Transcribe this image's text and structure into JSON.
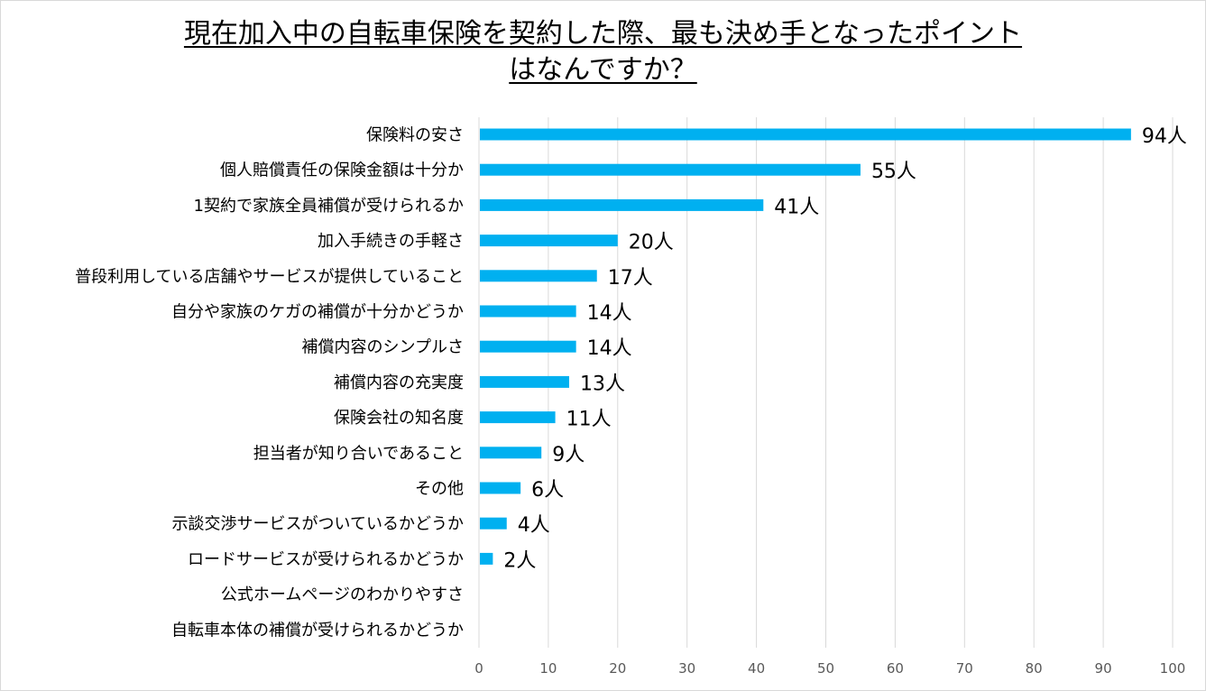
{
  "chart_data": {
    "type": "bar",
    "orientation": "horizontal",
    "title_line1": "現在加入中の自転車保険を契約した際、最も決め手となったポイント",
    "title_line2": "はなんですか？",
    "categories": [
      "保険料の安さ",
      "個人賠償責任の保険金額は十分か",
      "1契約で家族全員補償が受けられるか",
      "加入手続きの手軽さ",
      "普段利用している店舗やサービスが提供していること",
      "自分や家族のケガの補償が十分かどうか",
      "補償内容のシンプルさ",
      "補償内容の充実度",
      "保険会社の知名度",
      "担当者が知り合いであること",
      "その他",
      "示談交渉サービスがついているかどうか",
      "ロードサービスが受けられるかどうか",
      "公式ホームページのわかりやすさ",
      "自転車本体の補償が受けられるかどうか"
    ],
    "values": [
      94,
      55,
      41,
      20,
      17,
      14,
      14,
      13,
      11,
      9,
      6,
      4,
      2,
      0,
      0
    ],
    "value_labels": [
      "94人",
      "55人",
      "41人",
      "20人",
      "17人",
      "14人",
      "14人",
      "13人",
      "11人",
      "9人",
      "6人",
      "4人",
      "2人",
      "",
      ""
    ],
    "xlim": [
      0,
      100
    ],
    "xticks": [
      "0",
      "10",
      "20",
      "30",
      "40",
      "50",
      "60",
      "70",
      "80",
      "90",
      "100"
    ],
    "grid": true,
    "bar_color": "#00b0f0",
    "grid_color": "#d9d9d9"
  }
}
